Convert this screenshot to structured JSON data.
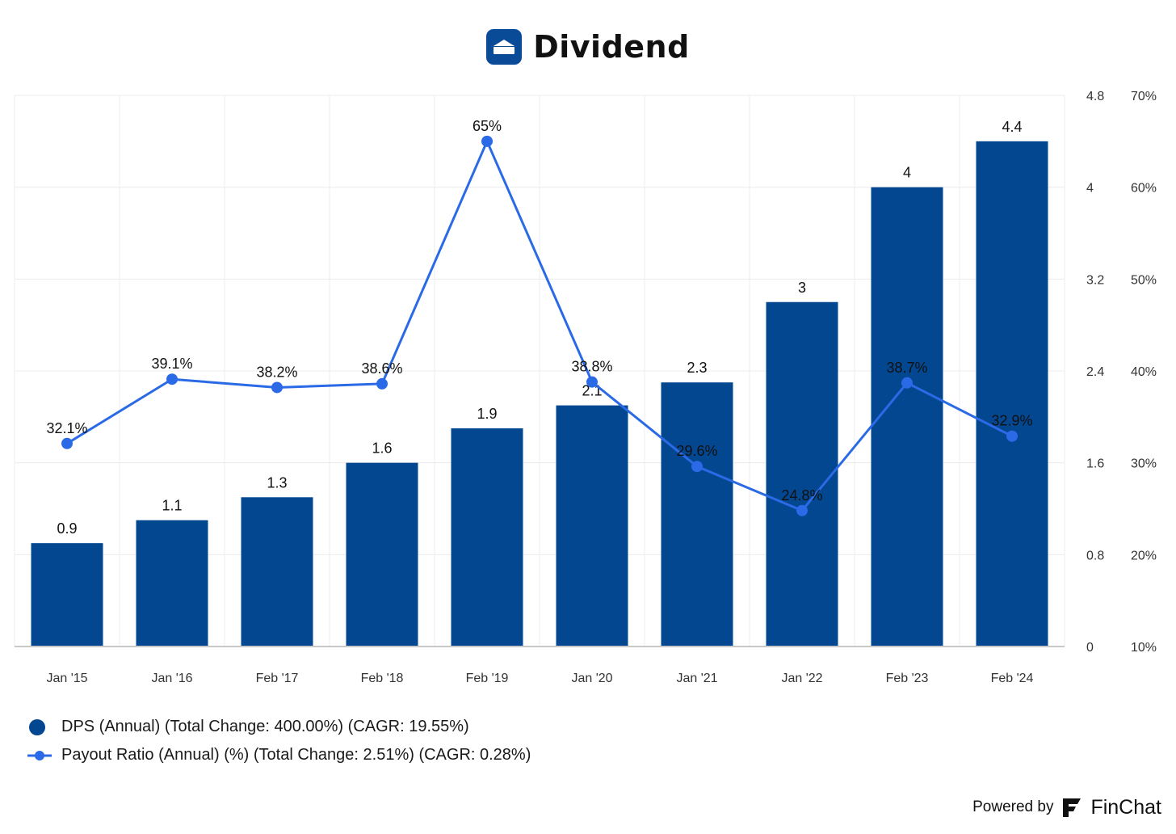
{
  "title": "Dividend",
  "colors": {
    "bar": "#034790",
    "line": "#2b6ae6",
    "grid": "#ececec",
    "axis": "#c8c8c8"
  },
  "chart_data": {
    "type": "bar",
    "categories": [
      "Jan '15",
      "Jan '16",
      "Feb '17",
      "Feb '18",
      "Feb '19",
      "Jan '20",
      "Jan '21",
      "Jan '22",
      "Feb '23",
      "Feb '24"
    ],
    "series": [
      {
        "name": "DPS (Annual) (Total Change: 400.00%) (CAGR: 19.55%)",
        "type": "bar",
        "axis": "right-inner",
        "values": [
          0.9,
          1.1,
          1.3,
          1.6,
          1.9,
          2.1,
          2.3,
          3,
          4,
          4.4
        ],
        "labels": [
          "0.9",
          "1.1",
          "1.3",
          "1.6",
          "1.9",
          "2.1",
          "2.3",
          "3",
          "4",
          "4.4"
        ]
      },
      {
        "name": "Payout Ratio (Annual) (%) (Total Change: 2.51%) (CAGR: 0.28%)",
        "type": "line",
        "axis": "right-outer",
        "values": [
          32.1,
          39.1,
          38.2,
          38.6,
          65,
          38.8,
          29.6,
          24.8,
          38.7,
          32.9
        ],
        "labels": [
          "32.1%",
          "39.1%",
          "38.2%",
          "38.6%",
          "65%",
          "38.8%",
          "29.6%",
          "24.8%",
          "38.7%",
          "32.9%"
        ]
      }
    ],
    "y_dps": {
      "lim": [
        0,
        4.8
      ],
      "ticks": [
        "0",
        "0.8",
        "1.6",
        "2.4",
        "3.2",
        "4",
        "4.8"
      ]
    },
    "y_payout": {
      "lim": [
        10,
        70
      ],
      "ticks": [
        "10%",
        "20%",
        "30%",
        "40%",
        "50%",
        "60%",
        "70%"
      ]
    },
    "grid": true,
    "legend_position": "bottom-left"
  },
  "footer": {
    "powered_by": "Powered by",
    "brand": "FinChat"
  }
}
